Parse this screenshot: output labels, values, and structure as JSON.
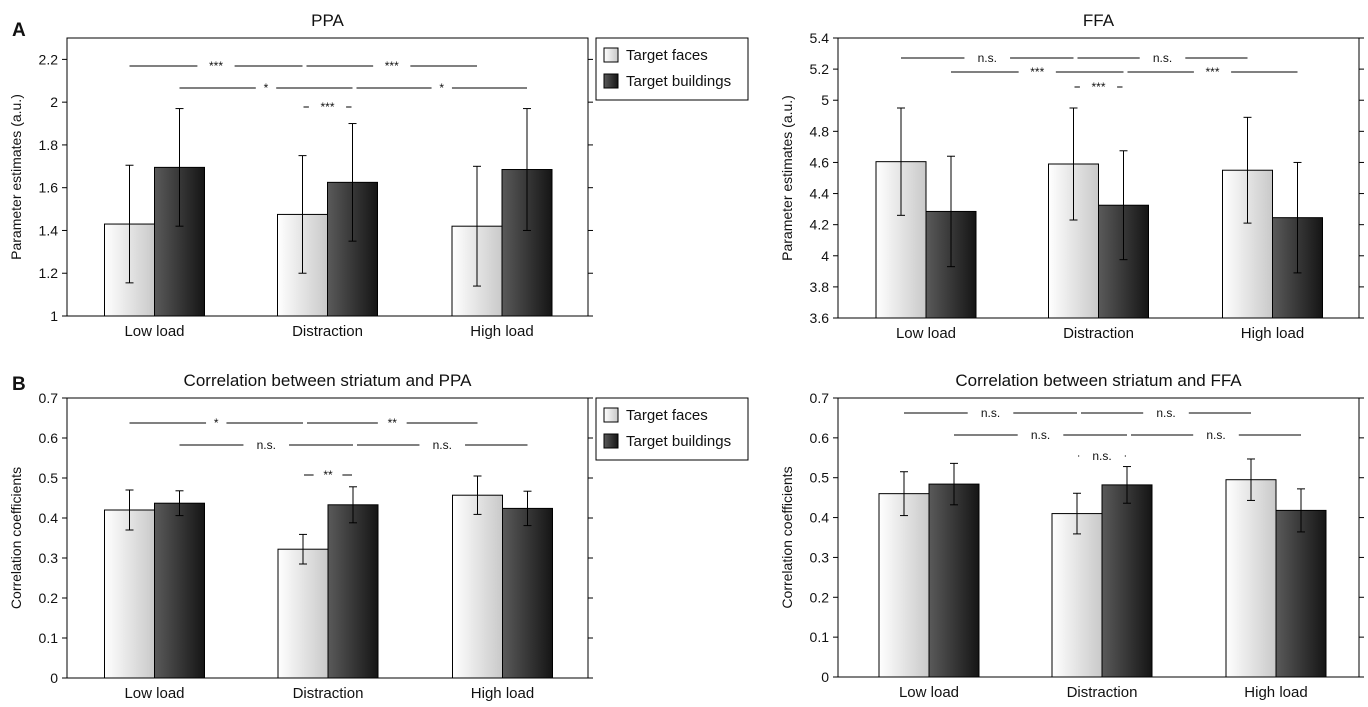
{
  "panel_labels": [
    "A",
    "B"
  ],
  "chart_data": [
    {
      "type": "bar",
      "title": "PPA",
      "xlabel": "",
      "ylabel": "Parameter estimates (a.u.)",
      "categories": [
        "Low load",
        "Distraction",
        "High load"
      ],
      "series": [
        {
          "name": "Target faces",
          "values": [
            1.43,
            1.475,
            1.42
          ],
          "errors": [
            0.275,
            0.275,
            0.28
          ]
        },
        {
          "name": "Target buildings",
          "values": [
            1.695,
            1.625,
            1.685
          ],
          "errors": [
            0.275,
            0.275,
            0.285
          ]
        }
      ],
      "ylim": [
        1,
        2.3
      ],
      "yticks": [
        "1",
        "1.2",
        "1.4",
        "1.6",
        "1.8",
        "2",
        "2.2"
      ],
      "legend": {
        "position": "top-right-outside"
      },
      "annotations": [
        {
          "label": "***",
          "from": "Low load",
          "to": "Distraction",
          "series": "Target faces"
        },
        {
          "label": "***",
          "from": "Distraction",
          "to": "High load",
          "series": "Target faces"
        },
        {
          "label": "*",
          "from": "Low load",
          "to": "Distraction",
          "series": "Target buildings"
        },
        {
          "label": "*",
          "from": "Distraction",
          "to": "High load",
          "series": "Target buildings"
        },
        {
          "label": "***",
          "category": "Distraction",
          "between": "series"
        }
      ]
    },
    {
      "type": "bar",
      "title": "FFA",
      "xlabel": "",
      "ylabel": "Parameter estimates (a.u.)",
      "categories": [
        "Low load",
        "Distraction",
        "High load"
      ],
      "series": [
        {
          "name": "Target faces",
          "values": [
            4.605,
            4.59,
            4.55
          ],
          "errors": [
            0.345,
            0.36,
            0.34
          ]
        },
        {
          "name": "Target buildings",
          "values": [
            4.285,
            4.325,
            4.245
          ],
          "errors": [
            0.355,
            0.35,
            0.355
          ]
        }
      ],
      "ylim": [
        3.6,
        5.4
      ],
      "yticks": [
        "3.6",
        "3.8",
        "4",
        "4.2",
        "4.4",
        "4.6",
        "4.8",
        "5",
        "5.2",
        "5.4"
      ],
      "annotations": [
        {
          "label": "n.s.",
          "from": "Low load",
          "to": "Distraction",
          "series": "Target faces"
        },
        {
          "label": "n.s.",
          "from": "Distraction",
          "to": "High load",
          "series": "Target faces"
        },
        {
          "label": "***",
          "from": "Low load",
          "to": "Distraction",
          "series": "Target buildings"
        },
        {
          "label": "***",
          "from": "Distraction",
          "to": "High load",
          "series": "Target buildings"
        },
        {
          "label": "***",
          "category": "Distraction",
          "between": "series"
        }
      ]
    },
    {
      "type": "bar",
      "title": "Correlation between striatum and PPA",
      "xlabel": "",
      "ylabel": "Correlation coefficients",
      "categories": [
        "Low load",
        "Distraction",
        "High load"
      ],
      "series": [
        {
          "name": "Target faces",
          "values": [
            0.42,
            0.322,
            0.457
          ],
          "errors": [
            0.05,
            0.037,
            0.048
          ]
        },
        {
          "name": "Target buildings",
          "values": [
            0.437,
            0.433,
            0.424
          ],
          "errors": [
            0.031,
            0.045,
            0.043
          ]
        }
      ],
      "ylim": [
        0,
        0.7
      ],
      "yticks": [
        "0",
        "0.1",
        "0.2",
        "0.3",
        "0.4",
        "0.5",
        "0.6",
        "0.7"
      ],
      "legend": {
        "position": "top-right-outside"
      },
      "annotations": [
        {
          "label": "*",
          "from": "Low load",
          "to": "Distraction",
          "series": "Target faces"
        },
        {
          "label": "**",
          "from": "Distraction",
          "to": "High load",
          "series": "Target faces"
        },
        {
          "label": "n.s.",
          "from": "Low load",
          "to": "Distraction",
          "series": "Target buildings"
        },
        {
          "label": "n.s.",
          "from": "Distraction",
          "to": "High load",
          "series": "Target buildings"
        },
        {
          "label": "**",
          "category": "Distraction",
          "between": "series"
        }
      ]
    },
    {
      "type": "bar",
      "title": "Correlation between striatum and FFA",
      "xlabel": "",
      "ylabel": "Correlation coefficients",
      "categories": [
        "Low load",
        "Distraction",
        "High load"
      ],
      "series": [
        {
          "name": "Target faces",
          "values": [
            0.46,
            0.41,
            0.495
          ],
          "errors": [
            0.055,
            0.051,
            0.052
          ]
        },
        {
          "name": "Target buildings",
          "values": [
            0.484,
            0.482,
            0.418
          ],
          "errors": [
            0.052,
            0.046,
            0.054
          ]
        }
      ],
      "ylim": [
        0,
        0.7
      ],
      "yticks": [
        "0",
        "0.1",
        "0.2",
        "0.3",
        "0.4",
        "0.5",
        "0.6",
        "0.7"
      ],
      "annotations": [
        {
          "label": "n.s.",
          "from": "Low load",
          "to": "Distraction",
          "series": "Target faces"
        },
        {
          "label": "n.s.",
          "from": "Distraction",
          "to": "High load",
          "series": "Target faces"
        },
        {
          "label": "n.s.",
          "from": "Low load",
          "to": "Distraction",
          "series": "Target buildings"
        },
        {
          "label": "n.s.",
          "from": "Distraction",
          "to": "High load",
          "series": "Target buildings"
        },
        {
          "label": "n.s.",
          "category": "Distraction",
          "between": "series"
        }
      ]
    }
  ]
}
